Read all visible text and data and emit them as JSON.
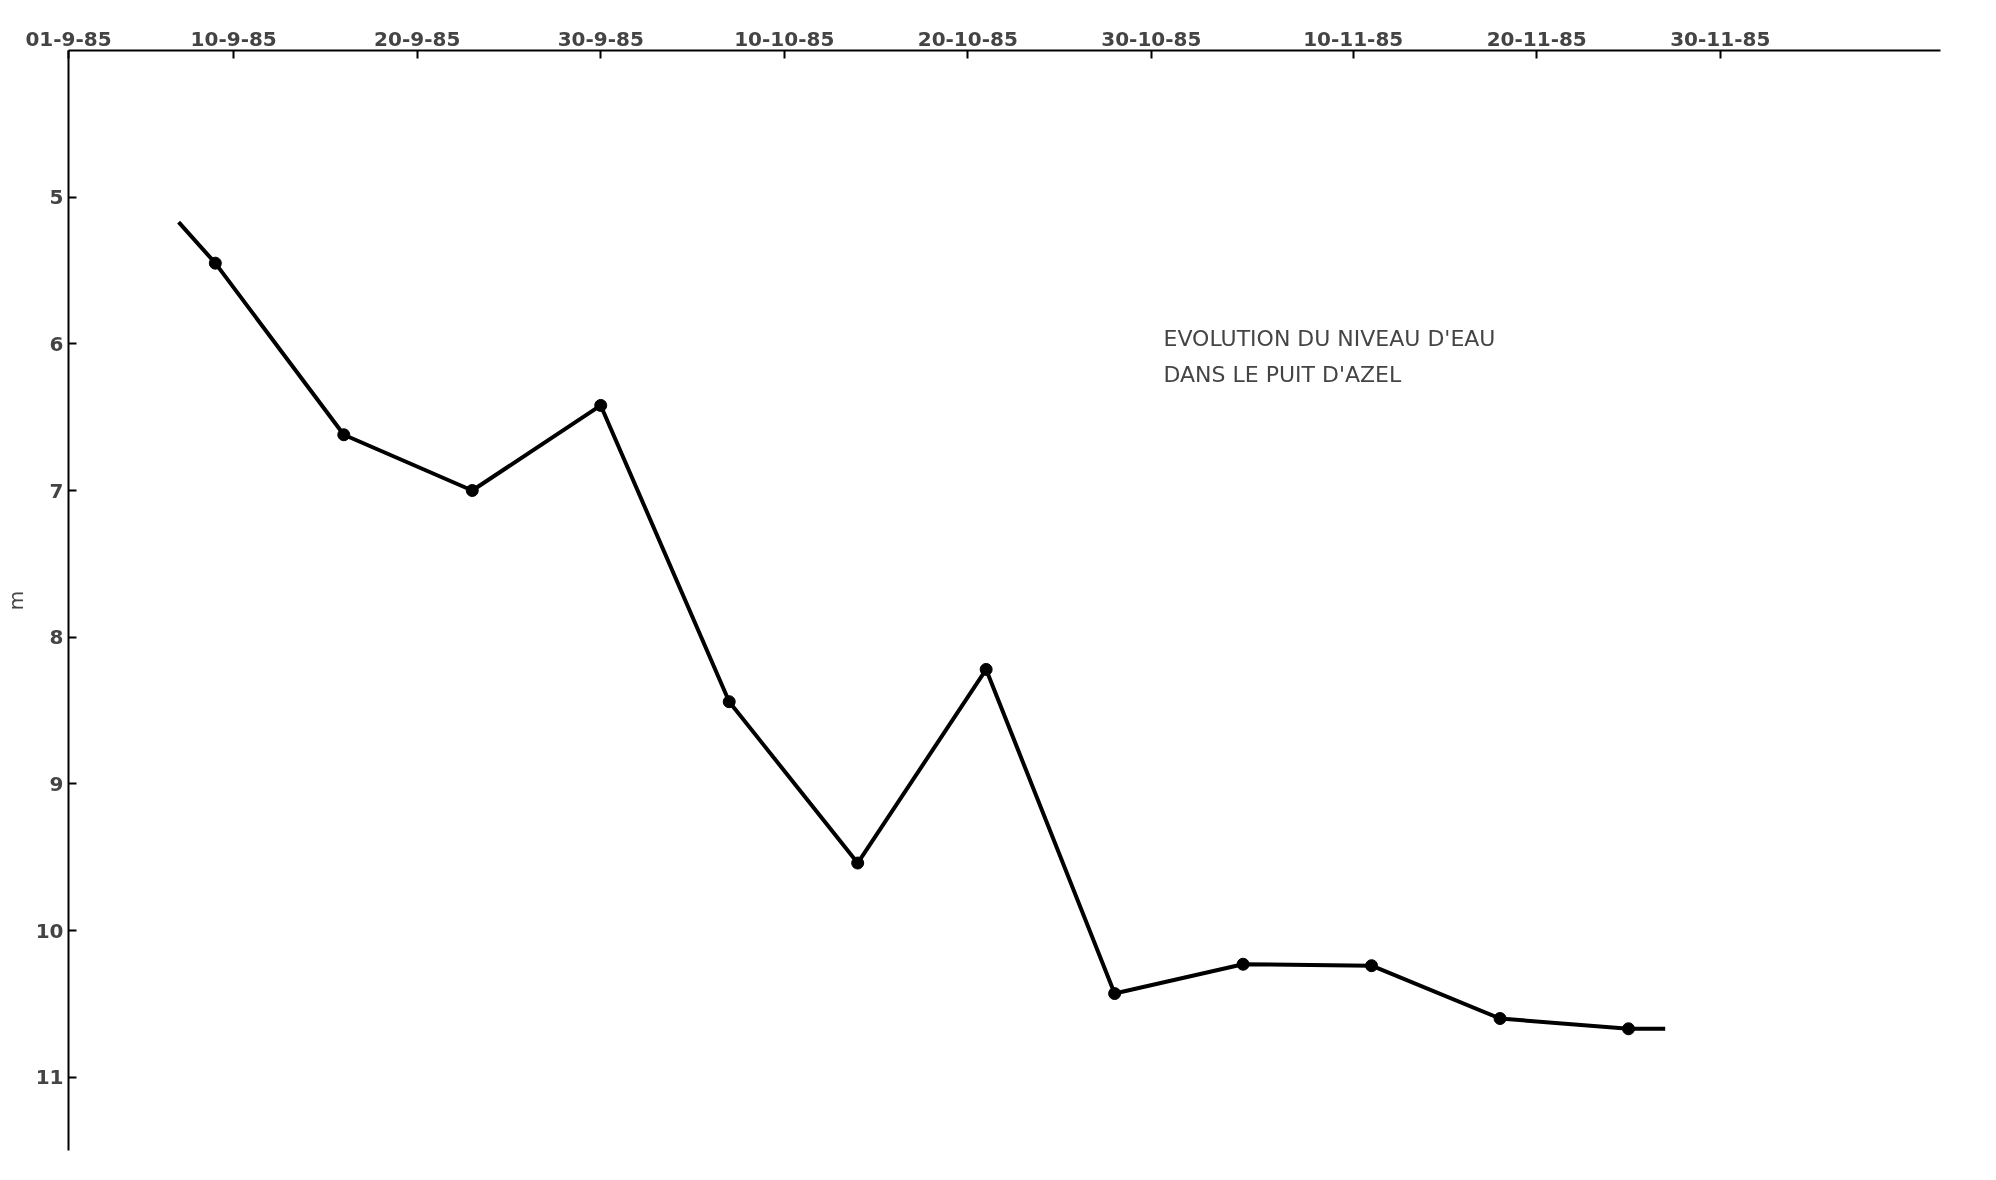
{
  "chart_data": {
    "type": "line",
    "title": "EVOLUTION DU NIVEAU D'EAU\nDANS LE PUIT D'AZEL",
    "ylabel": "m",
    "series": [
      {
        "color": "#000000",
        "marker": "none",
        "x": [
          "1985-09-07",
          "1985-09-09",
          "1985-09-16",
          "1985-09-23",
          "1985-09-30",
          "1985-10-07",
          "1985-10-14",
          "1985-10-21",
          "1985-10-28",
          "1985-11-04",
          "1985-11-11",
          "1985-11-18",
          "1985-11-25",
          "1985-11-27"
        ],
        "values": [
          5.17,
          5.45,
          6.62,
          7.0,
          6.42,
          8.44,
          9.54,
          8.22,
          10.43,
          10.23,
          10.24,
          10.6,
          10.67,
          10.67
        ]
      },
      {
        "type": "scatter",
        "color": "#000000",
        "marker": "circle",
        "x": [
          "1985-09-09",
          "1985-09-16",
          "1985-09-23",
          "1985-09-30",
          "1985-10-07",
          "1985-10-14",
          "1985-10-21",
          "1985-10-28",
          "1985-11-04",
          "1985-11-11",
          "1985-11-18",
          "1985-11-25"
        ],
        "values": [
          5.45,
          6.62,
          7.0,
          6.42,
          8.44,
          9.54,
          8.22,
          10.43,
          10.23,
          10.24,
          10.6,
          10.67
        ]
      }
    ],
    "xlim": [
      "1985-09-01",
      "1985-12-12"
    ],
    "xticks": [
      {
        "value": "1985-09-01",
        "label": "01-9-85"
      },
      {
        "value": "1985-09-10",
        "label": "10-9-85"
      },
      {
        "value": "1985-09-20",
        "label": "20-9-85"
      },
      {
        "value": "1985-09-30",
        "label": "30-9-85"
      },
      {
        "value": "1985-10-10",
        "label": "10-10-85"
      },
      {
        "value": "1985-10-20",
        "label": "20-10-85"
      },
      {
        "value": "1985-10-30",
        "label": "30-10-85"
      },
      {
        "value": "1985-11-10",
        "label": "10-11-85"
      },
      {
        "value": "1985-11-20",
        "label": "20-11-85"
      },
      {
        "value": "1985-11-30",
        "label": "30-11-85"
      }
    ],
    "ylim": [
      11.5,
      4
    ],
    "yticks": [
      5,
      6,
      7,
      8,
      9,
      10,
      11
    ],
    "grid": false
  }
}
